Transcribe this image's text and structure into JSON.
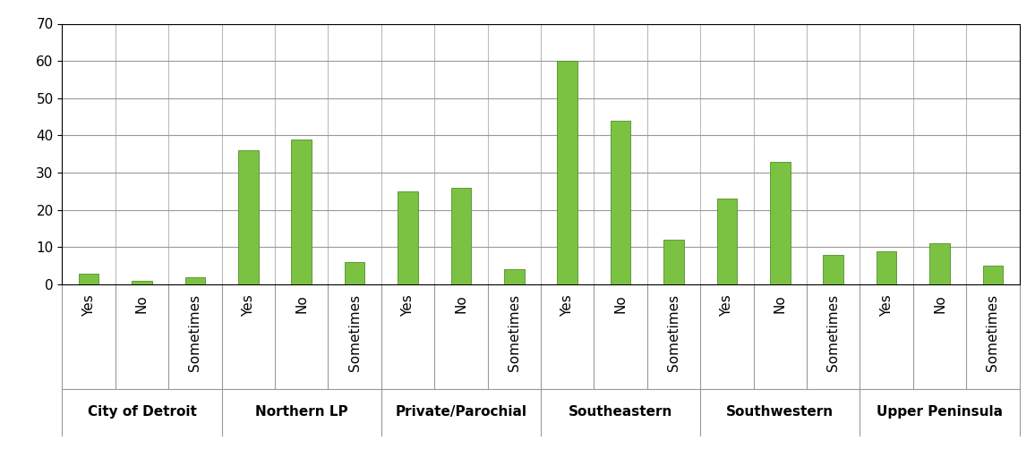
{
  "chart_data": {
    "type": "bar",
    "groups": [
      {
        "name": "City of Detroit",
        "categories": [
          "Yes",
          "No",
          "Sometimes"
        ],
        "values": [
          3,
          1,
          2
        ]
      },
      {
        "name": "Northern LP",
        "categories": [
          "Yes",
          "No",
          "Sometimes"
        ],
        "values": [
          36,
          39,
          6
        ]
      },
      {
        "name": "Private/Parochial",
        "categories": [
          "Yes",
          "No",
          "Sometimes"
        ],
        "values": [
          25,
          26,
          4
        ]
      },
      {
        "name": "Southeastern",
        "categories": [
          "Yes",
          "No",
          "Sometimes"
        ],
        "values": [
          60,
          44,
          12
        ]
      },
      {
        "name": "Southwestern",
        "categories": [
          "Yes",
          "No",
          "Sometimes"
        ],
        "values": [
          23,
          33,
          8
        ]
      },
      {
        "name": "Upper Peninsula",
        "categories": [
          "Yes",
          "No",
          "Sometimes"
        ],
        "values": [
          9,
          11,
          5
        ]
      }
    ],
    "color": "#7cc242",
    "ylim": [
      0,
      70
    ],
    "yticks": [
      0,
      10,
      20,
      30,
      40,
      50,
      60,
      70
    ],
    "grid": true
  }
}
